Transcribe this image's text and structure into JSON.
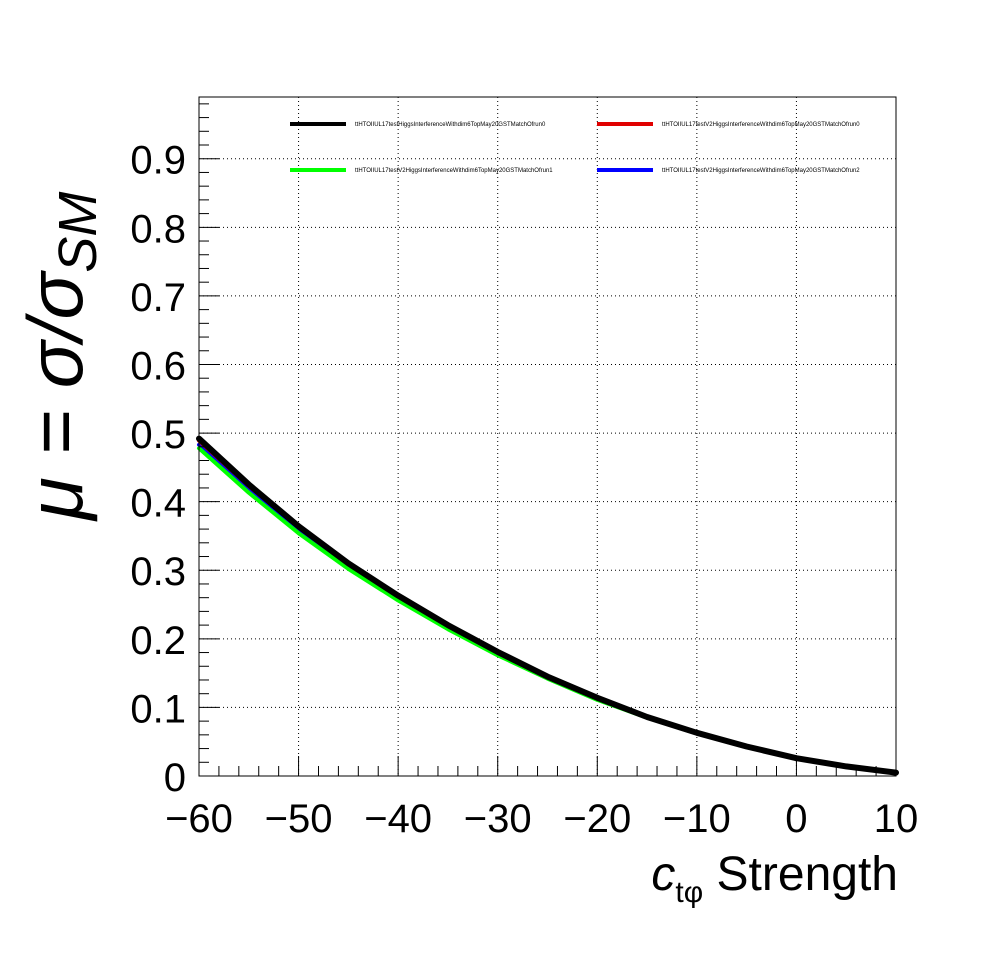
{
  "chart_data": {
    "type": "line",
    "xlabel": {
      "main": "c",
      "subscript": "tφ",
      "suffix": " Strength"
    },
    "ylabel": {
      "prefix": "μ = σ/σ",
      "subscript": "SM"
    },
    "xlim": [
      -60,
      10
    ],
    "ylim": [
      0,
      0.99
    ],
    "x_ticks": [
      -60,
      -50,
      -40,
      -30,
      -20,
      -10,
      0,
      10
    ],
    "x_tick_labels": [
      "−60",
      "−50",
      "−40",
      "−30",
      "−20",
      "−10",
      "0",
      "10"
    ],
    "y_ticks": [
      0,
      0.1,
      0.2,
      0.3,
      0.4,
      0.5,
      0.6,
      0.7,
      0.8,
      0.9
    ],
    "y_tick_labels": [
      "0",
      "0.1",
      "0.2",
      "0.3",
      "0.4",
      "0.5",
      "0.6",
      "0.7",
      "0.8",
      "0.9"
    ],
    "grid": true,
    "legend_position": "top",
    "x": [
      -60,
      -55,
      -50,
      -45,
      -40,
      -35,
      -30,
      -25,
      -20,
      -15,
      -10,
      -5,
      0,
      5,
      10
    ],
    "series": [
      {
        "name": "ttHTOIIUL17testHiggsInterferenceWithdim6TopMay20GSTMatchOfrun0",
        "color": "#000000",
        "width": 6,
        "values": [
          0.492,
          0.425,
          0.364,
          0.31,
          0.263,
          0.22,
          0.181,
          0.145,
          0.114,
          0.086,
          0.063,
          0.043,
          0.026,
          0.014,
          0.005
        ]
      },
      {
        "name": "ttHTOIIUL17testV2HiggsInterferenceWithdim6TopMay20GSTMatchOfrun0",
        "color": "#e00000",
        "width": 4,
        "values": [
          0.489,
          0.423,
          0.363,
          0.309,
          0.262,
          0.219,
          0.18,
          0.145,
          0.114,
          0.086,
          0.063,
          0.043,
          0.026,
          0.014,
          0.005
        ]
      },
      {
        "name": "ttHTOIIUL17testV2HiggsInterferenceWithdim6TopMay20GSTMatchOfrun1",
        "color": "#00ff00",
        "width": 4,
        "values": [
          0.478,
          0.413,
          0.354,
          0.302,
          0.256,
          0.214,
          0.176,
          0.142,
          0.111,
          0.085,
          0.062,
          0.042,
          0.026,
          0.014,
          0.005
        ]
      },
      {
        "name": "ttHTOIIUL17testV2HiggsInterferenceWithdim6TopMay20GSTMatchOfrun2",
        "color": "#0000ff",
        "width": 4,
        "values": [
          0.483,
          0.418,
          0.358,
          0.305,
          0.258,
          0.216,
          0.178,
          0.143,
          0.112,
          0.086,
          0.062,
          0.043,
          0.026,
          0.014,
          0.005
        ]
      }
    ]
  }
}
